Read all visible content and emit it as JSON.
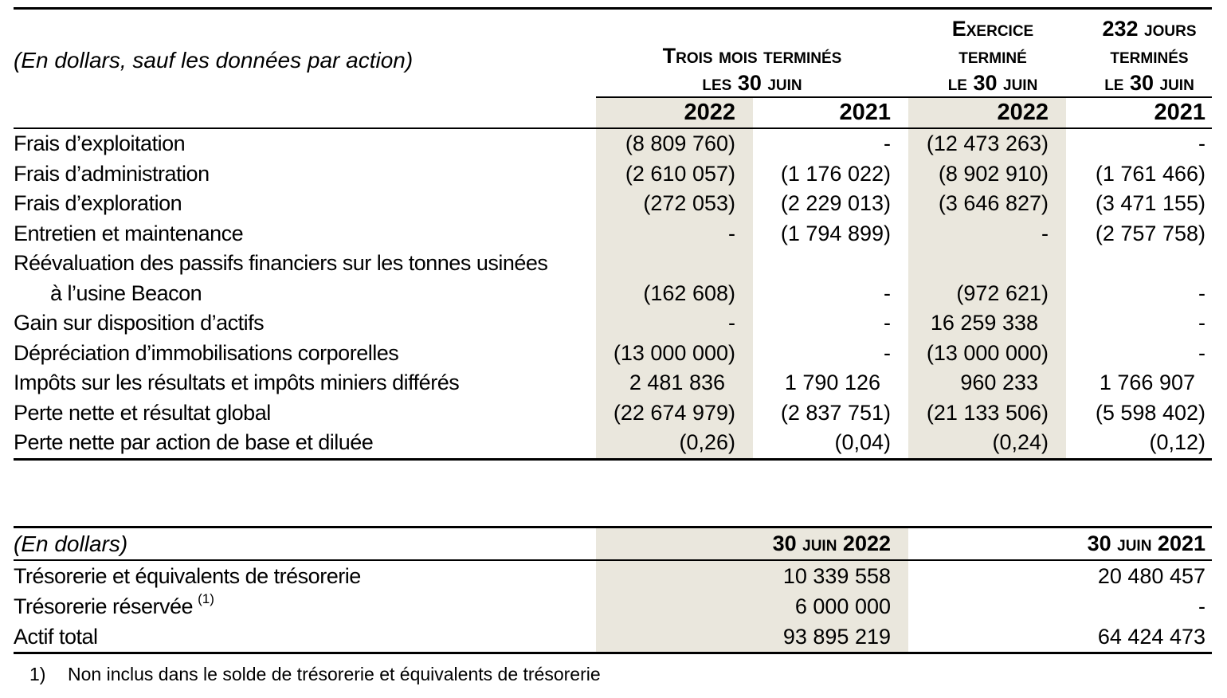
{
  "colors": {
    "shade": "#EAE7DD",
    "rule": "#000000",
    "text": "#000000"
  },
  "table1": {
    "unit_label": "(En dollars, sauf les données par action)",
    "col_groups": [
      {
        "lines": [
          "Trois mois terminés",
          "les 30 juin"
        ]
      },
      {
        "lines": [
          "Exercice",
          "terminé",
          "le 30 juin"
        ]
      },
      {
        "lines": [
          "232 jours",
          "terminés",
          "le 30 juin"
        ]
      }
    ],
    "year_headers": [
      "2022",
      "2021",
      "2022",
      "2021"
    ],
    "rows": [
      {
        "label": "Frais d’exploitation",
        "indent": false,
        "values": [
          "(8 809 760)",
          "-",
          "(12 473 263)",
          "-"
        ]
      },
      {
        "label": "Frais d’administration",
        "indent": false,
        "values": [
          "(2 610 057)",
          "(1 176 022)",
          "(8 902 910)",
          "(1 761 466)"
        ]
      },
      {
        "label": "Frais d’exploration",
        "indent": false,
        "values": [
          "(272 053)",
          "(2 229 013)",
          "(3 646 827)",
          "(3 471 155)"
        ]
      },
      {
        "label": "Entretien et maintenance",
        "indent": false,
        "values": [
          "-",
          "(1 794 899)",
          "-",
          "(2 757 758)"
        ]
      },
      {
        "label": "Réévaluation des passifs financiers sur les tonnes usinées",
        "indent": false,
        "values": [
          "",
          "",
          "",
          ""
        ]
      },
      {
        "label": "à l’usine Beacon",
        "indent": true,
        "values": [
          "(162 608)",
          "-",
          "(972 621)",
          "-"
        ]
      },
      {
        "label": "Gain sur disposition d’actifs",
        "indent": false,
        "values": [
          "-",
          "-",
          "16 259 338",
          "-"
        ]
      },
      {
        "label": "Dépréciation d’immobilisations corporelles",
        "indent": false,
        "values": [
          "(13 000 000)",
          "-",
          "(13 000 000)",
          "-"
        ]
      },
      {
        "label": "Impôts sur les résultats et impôts miniers différés",
        "indent": false,
        "values": [
          "2 481 836",
          "1 790 126",
          "960 233",
          "1 766 907"
        ]
      },
      {
        "label": "Perte nette et résultat global",
        "indent": false,
        "values": [
          "(22 674 979)",
          "(2 837 751)",
          "(21 133 506)",
          "(5 598 402)"
        ]
      },
      {
        "label": "Perte nette par action de base et diluée",
        "indent": false,
        "values": [
          "(0,26)",
          "(0,04)",
          "(0,24)",
          "(0,12)"
        ]
      }
    ]
  },
  "table2": {
    "unit_label": "(En dollars)",
    "col_headers": [
      "30 juin 2022",
      "30 juin 2021"
    ],
    "rows": [
      {
        "label": "Trésorerie et équivalents de trésorerie",
        "sup": "",
        "values": [
          "10 339 558",
          "20 480 457"
        ]
      },
      {
        "label": "Trésorerie réservée",
        "sup": "(1)",
        "values": [
          "6 000 000",
          "-"
        ]
      },
      {
        "label": "Actif total",
        "sup": "",
        "values": [
          "93 895 219",
          "64 424 473"
        ]
      }
    ],
    "footnote": {
      "marker": "1)",
      "text": "Non inclus dans le solde de trésorerie et équivalents de trésorerie"
    }
  }
}
